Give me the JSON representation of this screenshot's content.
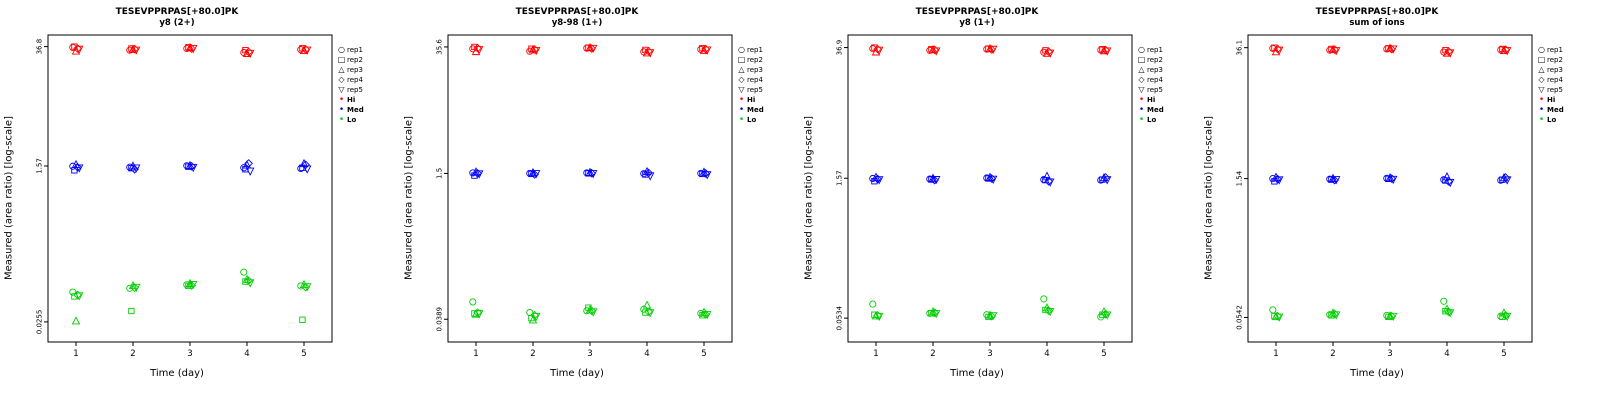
{
  "page": {
    "background": "#FFFFFF"
  },
  "legend": {
    "reps": [
      {
        "label": "rep1",
        "symbol": "circle"
      },
      {
        "label": "rep2",
        "symbol": "square"
      },
      {
        "label": "rep3",
        "symbol": "triangle-up"
      },
      {
        "label": "rep4",
        "symbol": "diamond"
      },
      {
        "label": "rep5",
        "symbol": "triangle-down"
      }
    ],
    "levels": [
      {
        "label": "Hi",
        "color": "#FF0000"
      },
      {
        "label": "Med",
        "color": "#0000FF"
      },
      {
        "label": "Lo",
        "color": "#00CD00"
      }
    ]
  },
  "chart_data": [
    {
      "type": "scatter",
      "title": "TESEVPPRPAS[+80.0]PK",
      "subtitle": "y8 (2+)",
      "xlabel": "Time (day)",
      "ylabel": "Measured (area ratio) [log-scale]",
      "x": [
        1,
        2,
        3,
        4,
        5
      ],
      "xscale": "linear",
      "yscale": "log",
      "ylim": [
        0.015,
        50
      ],
      "grid": false,
      "legend_position": "right",
      "yticks": [
        {
          "value": 36.8,
          "label": "36.8"
        },
        {
          "value": 1.57,
          "label": "1.57"
        },
        {
          "value": 0.0255,
          "label": "0.0255"
        }
      ],
      "groups": [
        {
          "name": "Hi",
          "color": "#FF0000",
          "reps": [
            {
              "name": "rep1",
              "symbol": "circle",
              "values": [
                36.0,
                33.5,
                35.0,
                31.5,
                34.0
              ]
            },
            {
              "name": "rep2",
              "symbol": "square",
              "values": [
                36.8,
                35.0,
                36.2,
                33.5,
                35.2
              ]
            },
            {
              "name": "rep3",
              "symbol": "triangle-up",
              "values": [
                32.5,
                34.0,
                35.5,
                30.5,
                33.0
              ]
            },
            {
              "name": "rep4",
              "symbol": "diamond",
              "values": [
                35.0,
                34.5,
                34.8,
                32.0,
                34.2
              ]
            },
            {
              "name": "rep5",
              "symbol": "triangle-down",
              "values": [
                34.5,
                33.8,
                35.2,
                31.0,
                33.8
              ]
            }
          ]
        },
        {
          "name": "Med",
          "color": "#0000FF",
          "reps": [
            {
              "name": "rep1",
              "symbol": "circle",
              "values": [
                1.56,
                1.52,
                1.58,
                1.5,
                1.47
              ]
            },
            {
              "name": "rep2",
              "symbol": "square",
              "values": [
                1.4,
                1.48,
                1.54,
                1.44,
                1.5
              ]
            },
            {
              "name": "rep3",
              "symbol": "triangle-up",
              "values": [
                1.62,
                1.56,
                1.58,
                1.6,
                1.66
              ]
            },
            {
              "name": "rep4",
              "symbol": "diamond",
              "values": [
                1.52,
                1.44,
                1.56,
                1.68,
                1.62
              ]
            },
            {
              "name": "rep5",
              "symbol": "triangle-down",
              "values": [
                1.5,
                1.5,
                1.52,
                1.38,
                1.46
              ]
            }
          ]
        },
        {
          "name": "Lo",
          "color": "#00CD00",
          "reps": [
            {
              "name": "rep1",
              "symbol": "circle",
              "values": [
                0.056,
                0.062,
                0.068,
                0.095,
                0.066
              ]
            },
            {
              "name": "rep2",
              "symbol": "square",
              "values": [
                0.05,
                0.034,
                0.066,
                0.074,
                0.027
              ]
            },
            {
              "name": "rep3",
              "symbol": "triangle-up",
              "values": [
                0.026,
                0.066,
                0.07,
                0.078,
                0.068
              ]
            },
            {
              "name": "rep4",
              "symbol": "diamond",
              "values": [
                0.052,
                0.063,
                0.067,
                0.076,
                0.064
              ]
            },
            {
              "name": "rep5",
              "symbol": "triangle-down",
              "values": [
                0.051,
                0.064,
                0.069,
                0.072,
                0.065
              ]
            }
          ]
        }
      ]
    },
    {
      "type": "scatter",
      "title": "TESEVPPRPAS[+80.0]PK",
      "subtitle": "y8-98 (1+)",
      "xlabel": "Time (day)",
      "ylabel": "Measured (area ratio) [log-scale]",
      "x": [
        1,
        2,
        3,
        4,
        5
      ],
      "xscale": "linear",
      "yscale": "log",
      "ylim": [
        0.022,
        48
      ],
      "grid": false,
      "legend_position": "right",
      "yticks": [
        {
          "value": 35.6,
          "label": "35.6"
        },
        {
          "value": 1.5,
          "label": "1.5"
        },
        {
          "value": 0.0389,
          "label": "0.0389"
        }
      ],
      "groups": [
        {
          "name": "Hi",
          "color": "#FF0000",
          "reps": [
            {
              "name": "rep1",
              "symbol": "circle",
              "values": [
                34.0,
                32.0,
                34.5,
                31.5,
                33.5
              ]
            },
            {
              "name": "rep2",
              "symbol": "square",
              "values": [
                35.6,
                34.0,
                35.0,
                33.0,
                34.5
              ]
            },
            {
              "name": "rep3",
              "symbol": "triangle-up",
              "values": [
                31.5,
                33.0,
                34.8,
                30.5,
                32.5
              ]
            },
            {
              "name": "rep4",
              "symbol": "diamond",
              "values": [
                34.5,
                33.5,
                34.2,
                32.0,
                33.8
              ]
            },
            {
              "name": "rep5",
              "symbol": "triangle-down",
              "values": [
                33.5,
                32.8,
                34.6,
                31.0,
                33.2
              ]
            }
          ]
        },
        {
          "name": "Med",
          "color": "#0000FF",
          "reps": [
            {
              "name": "rep1",
              "symbol": "circle",
              "values": [
                1.52,
                1.5,
                1.52,
                1.49,
                1.5
              ]
            },
            {
              "name": "rep2",
              "symbol": "square",
              "values": [
                1.42,
                1.48,
                1.5,
                1.46,
                1.48
              ]
            },
            {
              "name": "rep3",
              "symbol": "triangle-up",
              "values": [
                1.55,
                1.52,
                1.53,
                1.56,
                1.54
              ]
            },
            {
              "name": "rep4",
              "symbol": "diamond",
              "values": [
                1.5,
                1.46,
                1.51,
                1.52,
                1.5
              ]
            },
            {
              "name": "rep5",
              "symbol": "triangle-down",
              "values": [
                1.49,
                1.5,
                1.5,
                1.42,
                1.46
              ]
            }
          ]
        },
        {
          "name": "Lo",
          "color": "#00CD00",
          "reps": [
            {
              "name": "rep1",
              "symbol": "circle",
              "values": [
                0.06,
                0.046,
                0.048,
                0.05,
                0.045
              ]
            },
            {
              "name": "rep2",
              "symbol": "square",
              "values": [
                0.045,
                0.04,
                0.052,
                0.046,
                0.043
              ]
            },
            {
              "name": "rep3",
              "symbol": "triangle-up",
              "values": [
                0.044,
                0.038,
                0.049,
                0.055,
                0.046
              ]
            },
            {
              "name": "rep4",
              "symbol": "diamond",
              "values": [
                0.046,
                0.043,
                0.048,
                0.047,
                0.044
              ]
            },
            {
              "name": "rep5",
              "symbol": "triangle-down",
              "values": [
                0.045,
                0.042,
                0.047,
                0.046,
                0.044
              ]
            }
          ]
        }
      ]
    },
    {
      "type": "scatter",
      "title": "TESEVPPRPAS[+80.0]PK",
      "subtitle": "y8 (1+)",
      "xlabel": "Time (day)",
      "ylabel": "Measured (area ratio) [log-scale]",
      "x": [
        1,
        2,
        3,
        4,
        5
      ],
      "xscale": "linear",
      "yscale": "log",
      "ylim": [
        0.03,
        50
      ],
      "grid": false,
      "legend_position": "right",
      "yticks": [
        {
          "value": 36.9,
          "label": "36.9"
        },
        {
          "value": 1.57,
          "label": "1.57"
        },
        {
          "value": 0.0534,
          "label": "0.0534"
        }
      ],
      "groups": [
        {
          "name": "Hi",
          "color": "#FF0000",
          "reps": [
            {
              "name": "rep1",
              "symbol": "circle",
              "values": [
                36.0,
                34.5,
                35.5,
                33.0,
                34.8
              ]
            },
            {
              "name": "rep2",
              "symbol": "square",
              "values": [
                36.9,
                35.5,
                36.0,
                34.5,
                35.5
              ]
            },
            {
              "name": "rep3",
              "symbol": "triangle-up",
              "values": [
                33.0,
                34.8,
                35.8,
                32.0,
                34.0
              ]
            },
            {
              "name": "rep4",
              "symbol": "diamond",
              "values": [
                35.5,
                35.0,
                35.2,
                33.5,
                34.8
              ]
            },
            {
              "name": "rep5",
              "symbol": "triangle-down",
              "values": [
                34.8,
                34.2,
                35.6,
                32.5,
                34.2
              ]
            }
          ]
        },
        {
          "name": "Med",
          "color": "#0000FF",
          "reps": [
            {
              "name": "rep1",
              "symbol": "circle",
              "values": [
                1.56,
                1.54,
                1.58,
                1.52,
                1.5
              ]
            },
            {
              "name": "rep2",
              "symbol": "square",
              "values": [
                1.46,
                1.52,
                1.56,
                1.5,
                1.52
              ]
            },
            {
              "name": "rep3",
              "symbol": "triangle-up",
              "values": [
                1.6,
                1.56,
                1.6,
                1.64,
                1.58
              ]
            },
            {
              "name": "rep4",
              "symbol": "diamond",
              "values": [
                1.54,
                1.5,
                1.56,
                1.46,
                1.6
              ]
            },
            {
              "name": "rep5",
              "symbol": "triangle-down",
              "values": [
                1.52,
                1.53,
                1.54,
                1.44,
                1.52
              ]
            }
          ]
        },
        {
          "name": "Lo",
          "color": "#00CD00",
          "reps": [
            {
              "name": "rep1",
              "symbol": "circle",
              "values": [
                0.075,
                0.06,
                0.058,
                0.085,
                0.055
              ]
            },
            {
              "name": "rep2",
              "symbol": "square",
              "values": [
                0.058,
                0.06,
                0.055,
                0.065,
                0.058
              ]
            },
            {
              "name": "rep3",
              "symbol": "triangle-up",
              "values": [
                0.056,
                0.062,
                0.057,
                0.068,
                0.062
              ]
            },
            {
              "name": "rep4",
              "symbol": "diamond",
              "values": [
                0.057,
                0.061,
                0.056,
                0.064,
                0.059
              ]
            },
            {
              "name": "rep5",
              "symbol": "triangle-down",
              "values": [
                0.056,
                0.06,
                0.057,
                0.063,
                0.058
              ]
            }
          ]
        }
      ]
    },
    {
      "type": "scatter",
      "title": "TESEVPPRPAS[+80.0]PK",
      "subtitle": "sum of ions",
      "xlabel": "Time (day)",
      "ylabel": "Measured (area ratio) [log-scale]",
      "x": [
        1,
        2,
        3,
        4,
        5
      ],
      "xscale": "linear",
      "yscale": "log",
      "ylim": [
        0.03,
        49
      ],
      "grid": false,
      "legend_position": "right",
      "yticks": [
        {
          "value": 36.1,
          "label": "36.1"
        },
        {
          "value": 1.54,
          "label": "1.54"
        },
        {
          "value": 0.0542,
          "label": "0.0542"
        }
      ],
      "groups": [
        {
          "name": "Hi",
          "color": "#FF0000",
          "reps": [
            {
              "name": "rep1",
              "symbol": "circle",
              "values": [
                35.5,
                34.0,
                35.0,
                32.5,
                34.2
              ]
            },
            {
              "name": "rep2",
              "symbol": "square",
              "values": [
                36.1,
                35.0,
                35.6,
                34.0,
                35.0
              ]
            },
            {
              "name": "rep3",
              "symbol": "triangle-up",
              "values": [
                32.5,
                34.2,
                35.4,
                31.5,
                33.5
              ]
            },
            {
              "name": "rep4",
              "symbol": "diamond",
              "values": [
                35.0,
                34.5,
                34.8,
                33.0,
                34.4
              ]
            },
            {
              "name": "rep5",
              "symbol": "triangle-down",
              "values": [
                34.2,
                33.8,
                35.2,
                32.0,
                33.8
              ]
            }
          ]
        },
        {
          "name": "Med",
          "color": "#0000FF",
          "reps": [
            {
              "name": "rep1",
              "symbol": "circle",
              "values": [
                1.54,
                1.52,
                1.55,
                1.5,
                1.48
              ]
            },
            {
              "name": "rep2",
              "symbol": "square",
              "values": [
                1.44,
                1.5,
                1.53,
                1.47,
                1.5
              ]
            },
            {
              "name": "rep3",
              "symbol": "triangle-up",
              "values": [
                1.58,
                1.54,
                1.56,
                1.6,
                1.56
              ]
            },
            {
              "name": "rep4",
              "symbol": "diamond",
              "values": [
                1.52,
                1.48,
                1.54,
                1.44,
                1.58
              ]
            },
            {
              "name": "rep5",
              "symbol": "triangle-down",
              "values": [
                1.5,
                1.51,
                1.52,
                1.41,
                1.5
              ]
            }
          ]
        },
        {
          "name": "Lo",
          "color": "#00CD00",
          "reps": [
            {
              "name": "rep1",
              "symbol": "circle",
              "values": [
                0.065,
                0.058,
                0.057,
                0.08,
                0.056
              ]
            },
            {
              "name": "rep2",
              "symbol": "square",
              "values": [
                0.056,
                0.057,
                0.055,
                0.063,
                0.055
              ]
            },
            {
              "name": "rep3",
              "symbol": "triangle-up",
              "values": [
                0.055,
                0.06,
                0.056,
                0.066,
                0.06
              ]
            },
            {
              "name": "rep4",
              "symbol": "diamond",
              "values": [
                0.056,
                0.059,
                0.056,
                0.062,
                0.057
              ]
            },
            {
              "name": "rep5",
              "symbol": "triangle-down",
              "values": [
                0.055,
                0.058,
                0.056,
                0.061,
                0.056
              ]
            }
          ]
        }
      ]
    }
  ]
}
